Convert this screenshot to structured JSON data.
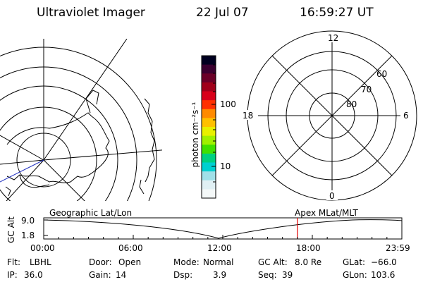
{
  "header": {
    "instrument": "Ultraviolet Imager",
    "date": "22 Jul 07",
    "time": "16:59:27 UT"
  },
  "colorbar": {
    "unit_label": "photon cm⁻²s⁻¹",
    "tick_labels": [
      "100",
      "10"
    ],
    "colors": [
      "#000020",
      "#3a0030",
      "#6a0028",
      "#a0001a",
      "#d8001a",
      "#ff3000",
      "#ff8a00",
      "#ffc000",
      "#e8f000",
      "#a0f000",
      "#40e000",
      "#00d080",
      "#00d0d0",
      "#a0e0e8",
      "#e0f0f4",
      "#f4f8f8"
    ]
  },
  "polar_plot": {
    "mlt_labels": {
      "top": "12",
      "bottom": "0",
      "left": "18",
      "right": "6"
    },
    "lat_labels": [
      "60",
      "70",
      "80"
    ]
  },
  "timeline": {
    "left_title": "Geographic Lat/Lon",
    "right_title": "Apex MLat/MLT",
    "y_axis_label": "GC Alt",
    "y_ticks": [
      "9.0",
      "1.8"
    ],
    "x_ticks": [
      "00:00",
      "06:00",
      "12:00",
      "18:00",
      "23:59"
    ],
    "current_time_marker_hours": 17.0
  },
  "info": {
    "flt_label": "Flt:",
    "flt_value": "LBHL",
    "ip_label": "IP:",
    "ip_value": "36.0",
    "door_label": "Door:",
    "door_value": "Open",
    "gain_label": "Gain:",
    "gain_value": "14",
    "mode_label": "Mode:",
    "mode_value": "Normal",
    "dsp_label": "Dsp:",
    "dsp_value": "3.9",
    "gcalt_label": "GC Alt:",
    "gcalt_value": "8.0 Re",
    "seq_label": "Seq:",
    "seq_value": "39",
    "glat_label": "GLat:",
    "glat_value": "−66.0",
    "glon_label": "GLon:",
    "glon_value": "103.6"
  }
}
